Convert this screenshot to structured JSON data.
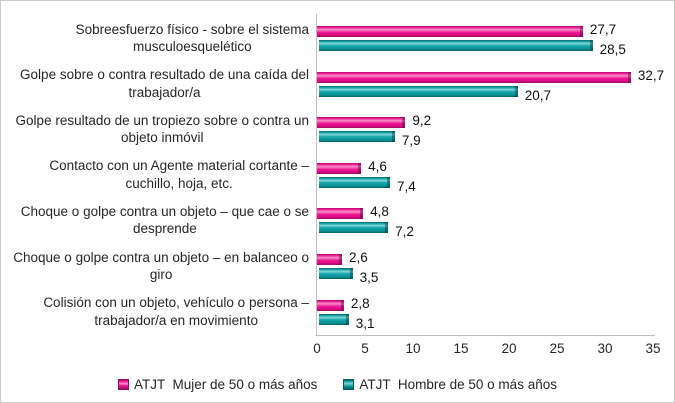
{
  "chart_data": {
    "type": "bar",
    "orientation": "horizontal",
    "title": "",
    "xlabel": "",
    "ylabel": "",
    "xlim": [
      0,
      35
    ],
    "xticks": [
      0,
      5,
      10,
      15,
      20,
      25,
      30,
      35
    ],
    "grid": false,
    "legend_position": "bottom",
    "decimal_separator": ",",
    "axis_color": "#bfbfbf",
    "categories": [
      "Sobreesfuerzo físico - sobre el sistema\nmusculoesquelético",
      "Golpe sobre o contra resultado de una caída del\ntrabajador/a",
      "Golpe resultado de un tropiezo sobre o contra un\nobjeto inmóvil",
      "Contacto con un Agente material cortante –\ncuchillo, hoja, etc.",
      "Choque o golpe contra un objeto – que cae o se\ndesprende",
      "Choque o golpe contra un objeto – en balanceo o\ngiro",
      "Colisión con un objeto, vehículo o persona –\ntrabajador/a en movimiento"
    ],
    "series": [
      {
        "name": "ATJT  Mujer de 50 o más años",
        "color": "#EC1190",
        "values": [
          27.7,
          32.7,
          9.2,
          4.6,
          4.8,
          2.6,
          2.8
        ]
      },
      {
        "name": "ATJT  Hombre de 50 o más años",
        "color": "#0FA0A4",
        "values": [
          28.5,
          20.7,
          7.9,
          7.4,
          7.2,
          3.5,
          3.1
        ]
      }
    ]
  }
}
